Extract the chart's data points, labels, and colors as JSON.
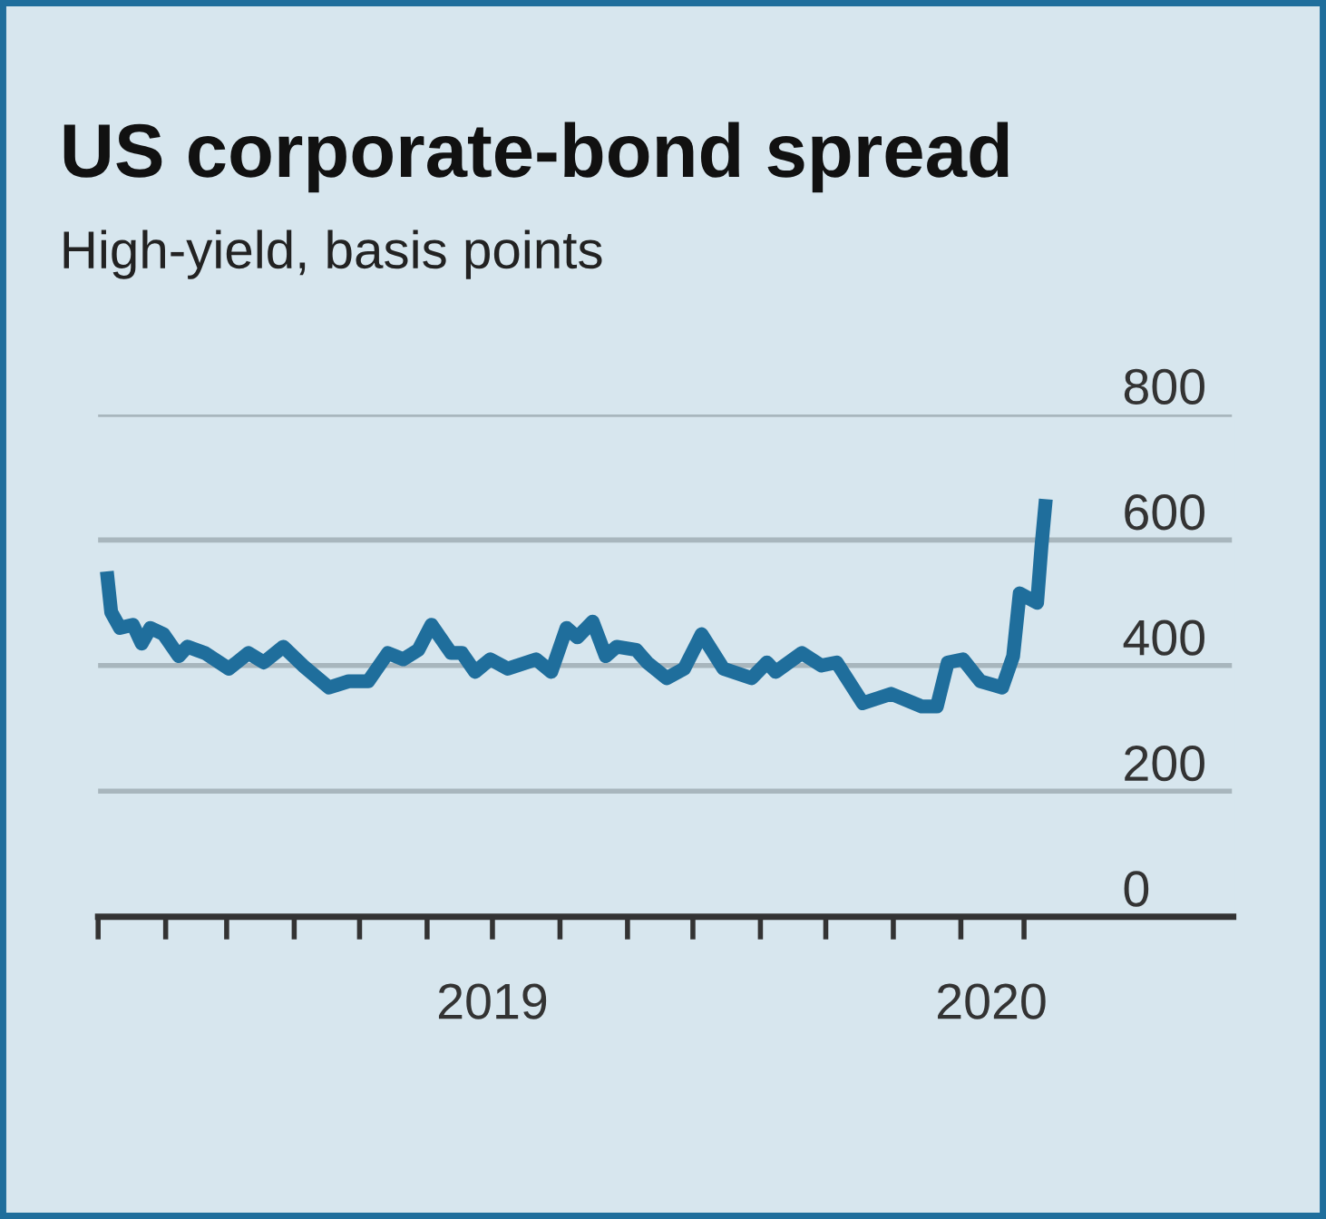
{
  "chart_data": {
    "type": "line",
    "title": "US corporate-bond spread",
    "subtitle": "High-yield, basis points",
    "x": [
      "2019-01-05",
      "2019-01-07",
      "2019-01-11",
      "2019-01-17",
      "2019-01-21",
      "2019-01-25",
      "2019-01-31",
      "2019-02-07",
      "2019-02-11",
      "2019-02-19",
      "2019-03-02",
      "2019-03-11",
      "2019-03-18",
      "2019-03-27",
      "2019-04-05",
      "2019-04-17",
      "2019-04-26",
      "2019-05-05",
      "2019-05-14",
      "2019-05-21",
      "2019-05-28",
      "2019-06-03",
      "2019-06-12",
      "2019-06-17",
      "2019-06-23",
      "2019-06-30",
      "2019-07-08",
      "2019-07-21",
      "2019-07-28",
      "2019-08-04",
      "2019-08-09",
      "2019-08-16",
      "2019-08-22",
      "2019-08-27",
      "2019-09-05",
      "2019-09-10",
      "2019-09-19",
      "2019-09-27",
      "2019-10-05",
      "2019-10-15",
      "2019-10-28",
      "2019-11-04",
      "2019-11-08",
      "2019-11-20",
      "2019-11-29",
      "2019-12-06",
      "2019-12-18",
      "2019-12-31",
      "2020-01-14",
      "2020-01-21",
      "2020-01-26",
      "2020-02-02",
      "2020-02-10",
      "2020-02-20",
      "2020-02-25",
      "2020-02-28",
      "2020-03-07",
      "2020-03-09",
      "2020-03-11"
    ],
    "series": [
      {
        "color": "#1f6e9c",
        "values": [
          550,
          485,
          460,
          465,
          435,
          460,
          450,
          415,
          430,
          420,
          395,
          420,
          405,
          430,
          400,
          365,
          375,
          375,
          420,
          410,
          425,
          465,
          420,
          420,
          390,
          410,
          395,
          410,
          390,
          460,
          445,
          470,
          415,
          430,
          425,
          405,
          380,
          395,
          450,
          395,
          380,
          405,
          390,
          420,
          400,
          405,
          340,
          355,
          335,
          335,
          405,
          410,
          375,
          365,
          415,
          515,
          500,
          590,
          665
        ]
      }
    ],
    "xlim": [
      "2019-01-01",
      "2020-06-05"
    ],
    "xticks": [
      {
        "value": "2019-01-01",
        "label": null
      },
      {
        "value": "2019-02-01",
        "label": null
      },
      {
        "value": "2019-03-01",
        "label": null
      },
      {
        "value": "2019-04-01",
        "label": null
      },
      {
        "value": "2019-05-01",
        "label": null
      },
      {
        "value": "2019-06-01",
        "label": null
      },
      {
        "value": "2019-07-01",
        "label": null
      },
      {
        "value": "2019-08-01",
        "label": null
      },
      {
        "value": "2019-09-01",
        "label": null
      },
      {
        "value": "2019-10-01",
        "label": null
      },
      {
        "value": "2019-11-01",
        "label": null
      },
      {
        "value": "2019-12-01",
        "label": null
      },
      {
        "value": "2020-01-01",
        "label": null
      },
      {
        "value": "2020-02-01",
        "label": null
      },
      {
        "value": "2020-03-01",
        "label": null
      },
      {
        "value": "2019-07-01",
        "label": "2019"
      },
      {
        "value": "2020-02-15",
        "label": "2020"
      }
    ],
    "ylim": [
      0,
      800
    ],
    "yticks": [
      0,
      200,
      400,
      600,
      800
    ],
    "grid": "y",
    "line_style": "solid",
    "marker": "none"
  }
}
